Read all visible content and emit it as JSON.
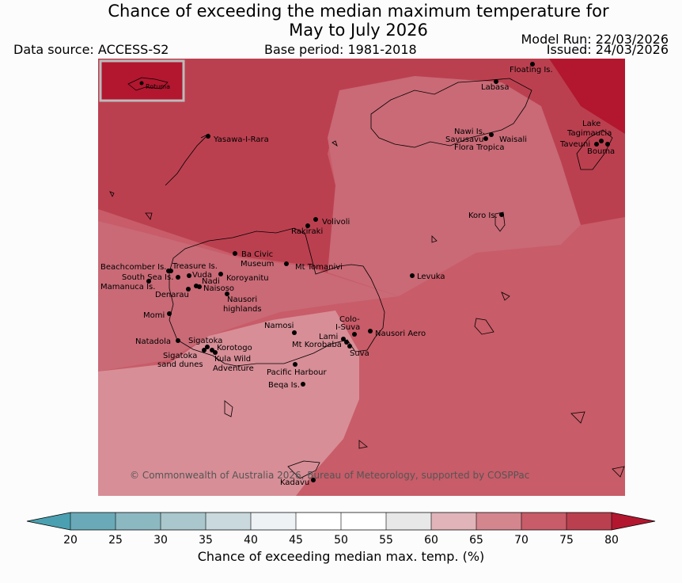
{
  "title": {
    "line1": "Chance of exceeding the median maximum temperature for",
    "line2": "May to July 2026"
  },
  "data_source": "Data source: ACCESS-S2",
  "base_period": "Base period: 1981-2018",
  "model_run": "Model Run: 22/03/2026",
  "issued": "Issued: 24/03/2026",
  "copyright": "© Commonwealth of Australia 2026, Bureau of Meteorology, supported by COSPPac",
  "inset_label": "Rotuma",
  "places": {
    "floating": "Floating Is.",
    "labasa": "Labasa",
    "yasawa": "Yasawa-I-Rara",
    "nawi": "Nawi Is.",
    "savusavu": "Savusavu",
    "waisali": "Waisali",
    "flora": "Flora Tropica",
    "lake": "Lake",
    "tagimaucia": "Tagimaucia",
    "taveuni": "Taveuni",
    "bouma": "Bouma",
    "koro": "Koro Is.",
    "volivoli": "Volivoli",
    "rakiraki": "Rakiraki",
    "beachcomber": "Beachcomber Is.",
    "treasure": "Treasure Is.",
    "southsea": "South Sea Is.",
    "vuda": "Vuda",
    "nadi": "Nadi",
    "mamanuca": "Mamanuca Is.",
    "naisoso": "Naisoso",
    "denarau": "Denarau",
    "ba_civic": "Ba Civic",
    "museum": "Museum",
    "mt_tomanivi": "Mt Tomanivi",
    "koroyanitu": "Koroyanitu",
    "levuka": "Levuka",
    "nausori_h1": "Nausori",
    "nausori_h2": "highlands",
    "momi": "Momi",
    "namosi": "Namosi",
    "colo1": "Colo-",
    "colo2": "I-Suva",
    "lami": "Lami",
    "nausori_aero": "Nausori Aero",
    "mt_korobaba": "Mt Korobaba",
    "suva": "Suva",
    "natadola": "Natadola",
    "sigatoka": "Sigatoka",
    "korotogo": "Korotogo",
    "sig_dunes1": "Sigatoka",
    "sig_dunes2": "sand dunes",
    "kula1": "Kula Wild",
    "kula2": "Adventure",
    "pacific_harbour": "Pacific Harbour",
    "beqa": "Beqa Is.",
    "kadavu": "Kadavu"
  },
  "colorbar": {
    "title": "Chance of exceeding median max. temp. (%)",
    "ticks": [
      "20",
      "25",
      "30",
      "35",
      "40",
      "45",
      "50",
      "55",
      "60",
      "65",
      "70",
      "75",
      "80"
    ],
    "colors": [
      "#4aa0b0",
      "#6aaab8",
      "#8cb8c2",
      "#a9c7cc",
      "#c9d9dd",
      "#eef2f5",
      "#ffffff",
      "#ffffff",
      "#e8e8e8",
      "#e0b4b8",
      "#d4868f",
      "#c85c68",
      "#bb404f",
      "#b2172f"
    ]
  },
  "chart_data": {
    "type": "heatmap",
    "variable": "Chance of exceeding median max. temp. (%)",
    "scale_min": 20,
    "scale_max": 80,
    "bins": [
      {
        "range": "60-65",
        "color": "#e0b4b8"
      },
      {
        "range": "65-70",
        "color": "#d4868f"
      },
      {
        "range": "70-75",
        "color": "#c85c68"
      },
      {
        "range": "75-80",
        "color": "#bb404f"
      },
      {
        "range": ">80",
        "color": "#b2172f"
      }
    ],
    "region": "Fiji",
    "inset_value": "75-80"
  }
}
